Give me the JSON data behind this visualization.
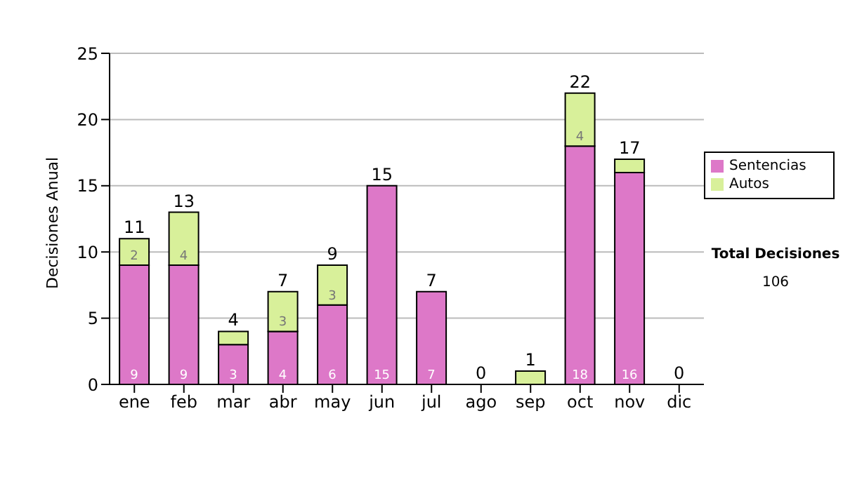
{
  "chart_data": {
    "type": "bar",
    "stacked": true,
    "ylabel": "Decisiones Anual",
    "categories": [
      "ene",
      "feb",
      "mar",
      "abr",
      "may",
      "jun",
      "jul",
      "ago",
      "sep",
      "oct",
      "nov",
      "dic"
    ],
    "series": [
      {
        "name": "Sentencias",
        "color": "#dd78c8",
        "values": [
          9,
          9,
          3,
          4,
          6,
          15,
          7,
          0,
          0,
          18,
          16,
          0
        ],
        "value_labels": [
          "9",
          "9",
          "3",
          "4",
          "6",
          "15",
          "7",
          null,
          null,
          "18",
          "16",
          null
        ]
      },
      {
        "name": "Autos",
        "color": "#d8f09a",
        "values": [
          2,
          4,
          1,
          3,
          3,
          0,
          0,
          0,
          1,
          4,
          1,
          0
        ],
        "value_labels": [
          "2",
          "4",
          null,
          "3",
          "3",
          null,
          null,
          null,
          null,
          "4",
          null,
          null
        ]
      }
    ],
    "totals": [
      "11",
      "13",
      "4",
      "7",
      "9",
      "15",
      "7",
      "0",
      "1",
      "22",
      "17",
      "0"
    ],
    "ylim": [
      0,
      25
    ],
    "yticks": [
      0,
      5,
      10,
      15,
      20,
      25
    ],
    "grid": "y",
    "legend": "right",
    "annotations": [
      "Total Decisiones",
      "106"
    ]
  }
}
